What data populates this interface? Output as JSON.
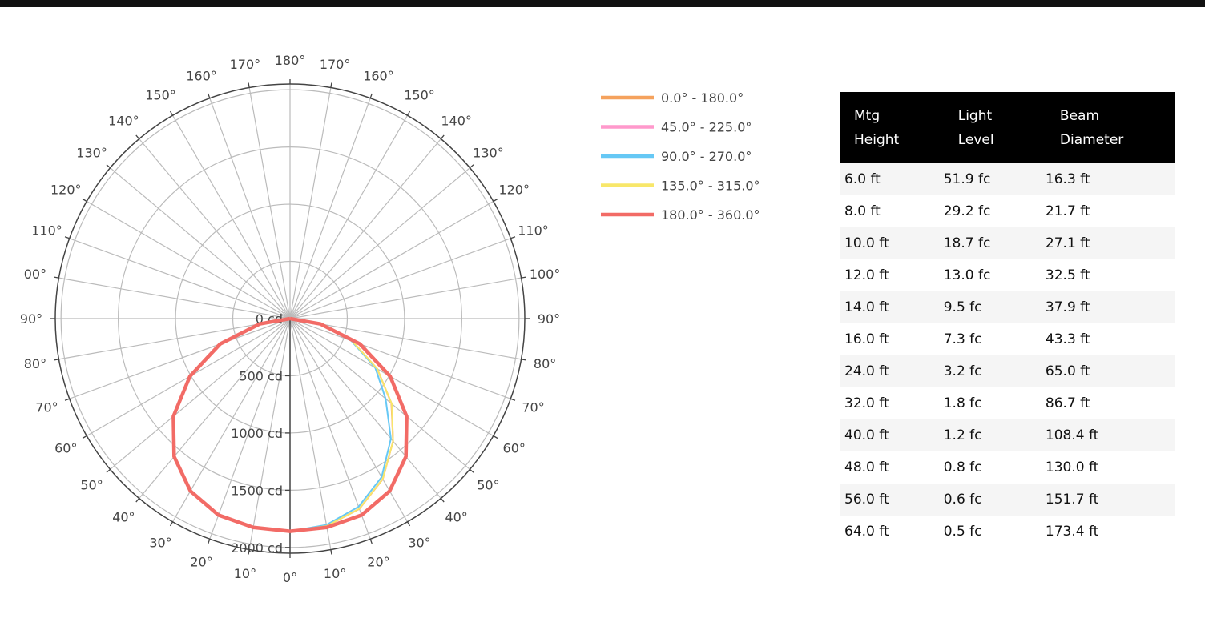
{
  "chart_data": {
    "type": "polar-line",
    "radial_axis": {
      "range": [
        0,
        2050
      ],
      "unit": "cd",
      "tick_labels": [
        "0 cd",
        "500 cd",
        "1000 cd",
        "1500 cd",
        "2000 cd"
      ],
      "tick_values": [
        0,
        500,
        1000,
        1500,
        2000
      ]
    },
    "angular_ticks": {
      "left": [
        "0°",
        "10°",
        "20°",
        "30°",
        "40°",
        "50°",
        "60°",
        "70°",
        "80°",
        "90°",
        "00°",
        "110°",
        "120°",
        "130°",
        "140°",
        "150°",
        "160°",
        "170°",
        "180°"
      ],
      "right": [
        "10°",
        "20°",
        "30°",
        "40°",
        "50°",
        "60°",
        "70°",
        "80°",
        "90°",
        "100°",
        "110°",
        "120°",
        "130°",
        "140°",
        "150°",
        "160°",
        "170°"
      ]
    },
    "angles": [
      0,
      10,
      20,
      30,
      40,
      50,
      60,
      70,
      80,
      90
    ],
    "series": [
      {
        "name": "0.0° - 180.0°",
        "color": "#f5a25d",
        "left": [
          1858,
          1853,
          1827,
          1740,
          1575,
          1330,
          1010,
          650,
          270,
          0
        ],
        "right": [
          1858,
          1840,
          1770,
          1620,
          1400,
          1155,
          880,
          580,
          260,
          0
        ]
      },
      {
        "name": "45.0° - 225.0°",
        "color": "#ff99cc",
        "left": [
          1858,
          1853,
          1827,
          1740,
          1575,
          1330,
          1010,
          650,
          270,
          0
        ],
        "right": [
          1858,
          1840,
          1768,
          1618,
          1400,
          1160,
          880,
          580,
          260,
          0
        ]
      },
      {
        "name": "90.0° - 270.0°",
        "color": "#66c8f5",
        "left": [
          1858,
          1853,
          1827,
          1740,
          1575,
          1330,
          1010,
          650,
          270,
          0
        ],
        "right": [
          1858,
          1830,
          1750,
          1600,
          1370,
          1090,
          860,
          570,
          255,
          0
        ]
      },
      {
        "name": "135.0° - 315.0°",
        "color": "#f8e76a",
        "left": [
          1858,
          1853,
          1827,
          1740,
          1575,
          1330,
          1010,
          650,
          270,
          0
        ],
        "right": [
          1858,
          1840,
          1768,
          1618,
          1400,
          1160,
          880,
          580,
          260,
          0
        ]
      },
      {
        "name": "180.0° - 360.0°",
        "color": "#f26b66",
        "left": [
          1858,
          1853,
          1827,
          1740,
          1575,
          1330,
          1010,
          650,
          270,
          0
        ],
        "right": [
          1858,
          1853,
          1827,
          1740,
          1575,
          1330,
          1010,
          650,
          270,
          0
        ]
      }
    ]
  },
  "table": {
    "headers": [
      [
        "Mtg",
        "Height"
      ],
      [
        "Light",
        "Level"
      ],
      [
        "Beam",
        "Diameter"
      ]
    ],
    "rows": [
      [
        "6.0 ft",
        "51.9 fc",
        "16.3 ft"
      ],
      [
        "8.0 ft",
        "29.2 fc",
        "21.7 ft"
      ],
      [
        "10.0 ft",
        "18.7 fc",
        "27.1 ft"
      ],
      [
        "12.0 ft",
        "13.0 fc",
        "32.5 ft"
      ],
      [
        "14.0 ft",
        "9.5 fc",
        "37.9 ft"
      ],
      [
        "16.0 ft",
        "7.3 fc",
        "43.3 ft"
      ],
      [
        "24.0 ft",
        "3.2 fc",
        "65.0 ft"
      ],
      [
        "32.0 ft",
        "1.8 fc",
        "86.7 ft"
      ],
      [
        "40.0 ft",
        "1.2 fc",
        "108.4 ft"
      ],
      [
        "48.0 ft",
        "0.8 fc",
        "130.0 ft"
      ],
      [
        "56.0 ft",
        "0.6 fc",
        "151.7 ft"
      ],
      [
        "64.0 ft",
        "0.5 fc",
        "173.4 ft"
      ]
    ]
  }
}
